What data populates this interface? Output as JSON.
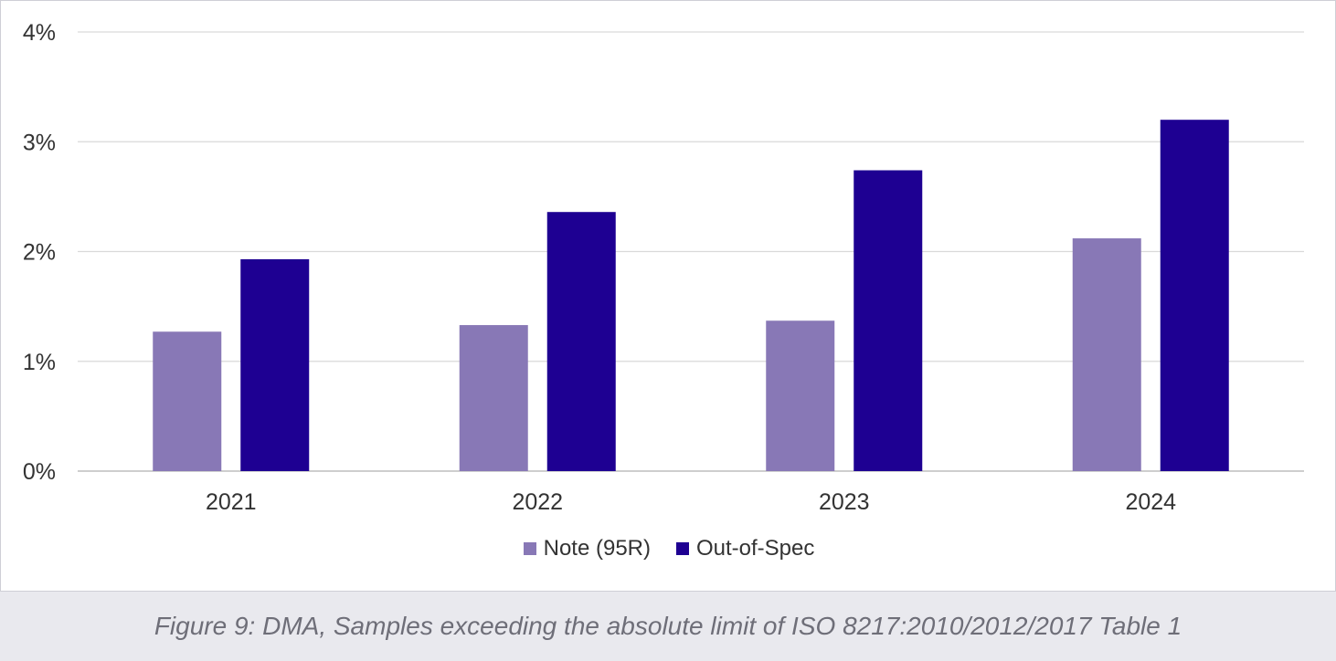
{
  "chart_data": {
    "type": "bar",
    "categories": [
      "2021",
      "2022",
      "2023",
      "2024"
    ],
    "series": [
      {
        "name": "Note (95R)",
        "values": [
          1.27,
          1.33,
          1.37,
          2.12
        ],
        "color": "#8878b6"
      },
      {
        "name": "Out-of-Spec",
        "values": [
          1.93,
          2.36,
          2.74,
          3.2
        ],
        "color": "#1e0092"
      }
    ],
    "yticks": [
      "0%",
      "1%",
      "2%",
      "3%",
      "4%"
    ],
    "ylim": [
      0,
      4
    ],
    "y_unit": "%",
    "grid": true,
    "legend_position": "bottom"
  },
  "caption": "Figure 9: DMA, Samples exceeding the absolute limit of ISO 8217:2010/2012/2017 Table 1"
}
